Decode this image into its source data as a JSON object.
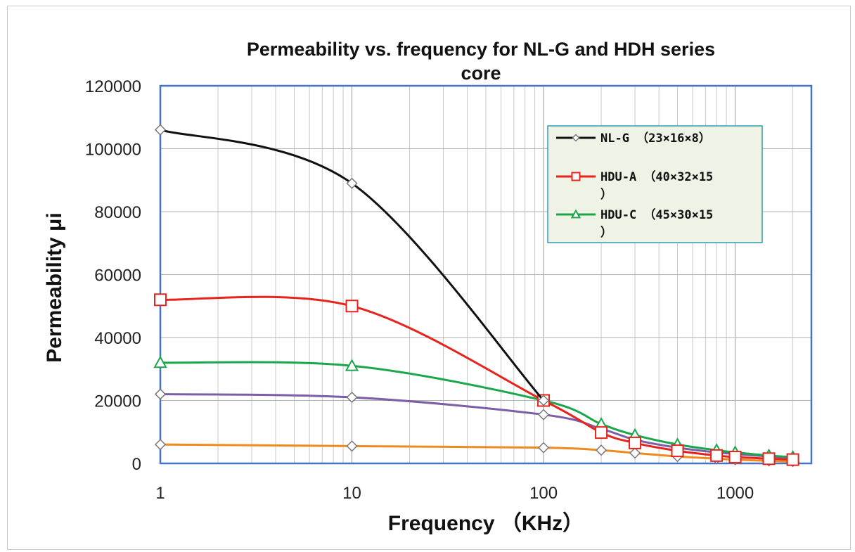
{
  "chart_data": {
    "type": "line",
    "title": "Permeability  vs. frequency for  NL-G  and HDH series core",
    "title_lines": [
      "Permeability  vs. frequency for  NL-G  and HDH series",
      "core"
    ],
    "xlabel": "Frequency  （KHz）",
    "ylabel": "Permeability  μi",
    "x_scale": "log",
    "xlim": [
      1,
      2500
    ],
    "ylim": [
      0,
      120000
    ],
    "x_ticks": [
      1,
      10,
      100,
      1000
    ],
    "x_tick_labels": [
      "1",
      "10",
      "100",
      "1000"
    ],
    "y_ticks": [
      0,
      20000,
      40000,
      60000,
      80000,
      100000,
      120000
    ],
    "y_tick_labels": [
      "0",
      "20000",
      "40000",
      "60000",
      "80000",
      "100000",
      "120000"
    ],
    "grid": true,
    "legend_position": "top-right",
    "plot_background": "#ffffff",
    "plot_border_color": "#4472c4",
    "legend_background": "#eef3e6",
    "legend_border_color": "#2e9bb5",
    "series": [
      {
        "name": "NL-G  （23×16×8）",
        "legend_lines": [
          "NL-G  （23×16×8）"
        ],
        "color": "#111111",
        "marker": "diamond",
        "x": [
          1,
          10,
          100
        ],
        "y": [
          106000,
          89000,
          20000
        ]
      },
      {
        "name": "HDU-A  （40×32×15）",
        "legend_lines": [
          "HDU-A  （40×32×15",
          "）"
        ],
        "color": "#e8221c",
        "marker": "square",
        "x": [
          1,
          10,
          100,
          200,
          300,
          500,
          800,
          1000,
          1500,
          2000
        ],
        "y": [
          52000,
          50000,
          20000,
          9800,
          6500,
          4000,
          2500,
          2000,
          1500,
          1200
        ]
      },
      {
        "name": "HDU-C  （45×30×15）",
        "legend_lines": [
          "HDU-C  （45×30×15",
          "）"
        ],
        "color": "#1aa64b",
        "marker": "triangle",
        "x": [
          1,
          10,
          100,
          200,
          300,
          500,
          800,
          1000,
          1500,
          2000
        ],
        "y": [
          32000,
          31000,
          20000,
          12500,
          9000,
          6000,
          4200,
          3500,
          2500,
          2000
        ]
      },
      {
        "color": "#7b5ea7",
        "marker": "diamond",
        "x": [
          1,
          10,
          100,
          200,
          300,
          500,
          800,
          1000,
          1500,
          2000
        ],
        "y": [
          22000,
          21000,
          15500,
          11000,
          7500,
          5000,
          3500,
          3000,
          2200,
          1800
        ]
      },
      {
        "color": "#ef8a1f",
        "marker": "diamond",
        "x": [
          1,
          10,
          100,
          200,
          300,
          500,
          800,
          1000,
          1500,
          2000
        ],
        "y": [
          6000,
          5500,
          5000,
          4200,
          3300,
          2200,
          1500,
          1200,
          800,
          600
        ]
      }
    ]
  }
}
